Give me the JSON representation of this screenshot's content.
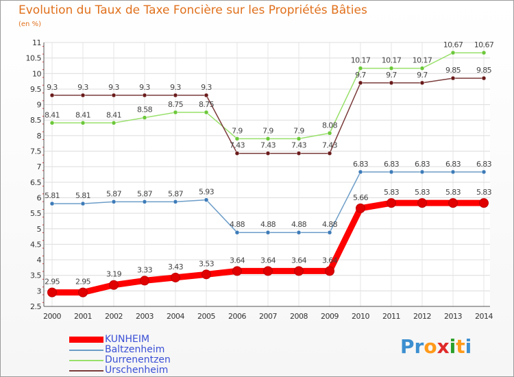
{
  "chart_data": {
    "type": "line",
    "title": "Evolution du Taux de Taxe Foncière sur les Propriétés Bâties",
    "subtitle": "(en %)",
    "categories": [
      "2000",
      "2001",
      "2002",
      "2003",
      "2004",
      "2005",
      "2006",
      "2007",
      "2008",
      "2009",
      "2010",
      "2011",
      "2012",
      "2013",
      "2014"
    ],
    "ylim": [
      2.5,
      11
    ],
    "yticks": [
      "2.5",
      "3",
      "3.5",
      "4",
      "4.5",
      "5",
      "5.5",
      "6",
      "6.5",
      "7",
      "7.5",
      "8",
      "8.5",
      "9",
      "9.5",
      "10",
      "10.5",
      "11"
    ],
    "grid": true,
    "legend_position": "bottom-left",
    "series": [
      {
        "name": "KUNHEIM",
        "color": "#ff0000",
        "point_color": "#e00000",
        "values": [
          2.95,
          2.95,
          3.19,
          3.33,
          3.43,
          3.53,
          3.64,
          3.64,
          3.64,
          3.64,
          5.66,
          5.83,
          5.83,
          5.83,
          5.83
        ],
        "labels": [
          "2.95",
          "2.95",
          "3.19",
          "3.33",
          "3.43",
          "3.53",
          "3.64",
          "3.64",
          "3.64",
          "3.64",
          "5.66",
          "5.83",
          "5.83",
          "5.83",
          "5.83"
        ]
      },
      {
        "name": "Baltzenheim",
        "color": "#6c9dc8",
        "point_color": "#3d7bb8",
        "values": [
          5.81,
          5.81,
          5.87,
          5.87,
          5.87,
          5.93,
          4.88,
          4.88,
          4.88,
          4.88,
          6.83,
          6.83,
          6.83,
          6.83,
          6.83
        ],
        "labels": [
          "5.81",
          "5.81",
          "5.87",
          "5.87",
          "5.87",
          "5.93",
          "4.88",
          "4.88",
          "4.88",
          "4.88",
          "6.83",
          "6.83",
          "6.83",
          "6.83",
          "6.83"
        ]
      },
      {
        "name": "Durrenentzen",
        "color": "#98e06a",
        "point_color": "#6cc83a",
        "values": [
          8.41,
          8.41,
          8.41,
          8.58,
          8.75,
          8.75,
          7.9,
          7.9,
          7.9,
          8.08,
          10.17,
          10.17,
          10.17,
          10.67,
          10.67
        ],
        "labels": [
          "8.41",
          "8.41",
          "8.41",
          "8.58",
          "8.75",
          "8.75",
          "7.9",
          "7.9",
          "7.9",
          "8.08",
          "10.17",
          "10.17",
          "10.17",
          "10.67",
          "10.67"
        ]
      },
      {
        "name": "Urschenheim",
        "color": "#7a3a3a",
        "point_color": "#6a1a1a",
        "values": [
          9.3,
          9.3,
          9.3,
          9.3,
          9.3,
          9.3,
          7.43,
          7.43,
          7.43,
          7.43,
          9.7,
          9.7,
          9.7,
          9.85,
          9.85
        ],
        "labels": [
          "9.3",
          "9.3",
          "9.3",
          "9.3",
          "9.3",
          "9.3",
          "7.43",
          "7.43",
          "7.43",
          "7.43",
          "9.7",
          "9.7",
          "9.7",
          "9.85",
          "9.85"
        ]
      }
    ]
  },
  "legend": {
    "items": [
      {
        "label": "KUNHEIM",
        "color": "#ff0000"
      },
      {
        "label": "Baltzenheim",
        "color": "#6c9dc8"
      },
      {
        "label": "Durrenentzen",
        "color": "#98e06a"
      },
      {
        "label": "Urschenheim",
        "color": "#7a3a3a"
      }
    ]
  },
  "logo": {
    "letters": [
      {
        "ch": "P",
        "color": "#3c8fd0"
      },
      {
        "ch": "r",
        "color": "#3c8fd0"
      },
      {
        "ch": "o",
        "color": "#ff9a1a"
      },
      {
        "ch": "x",
        "color": "#e02a2a"
      },
      {
        "ch": "i",
        "color": "#2aa02a"
      },
      {
        "ch": "t",
        "color": "#ff9a1a"
      },
      {
        "ch": "i",
        "color": "#3c8fd0"
      }
    ]
  }
}
